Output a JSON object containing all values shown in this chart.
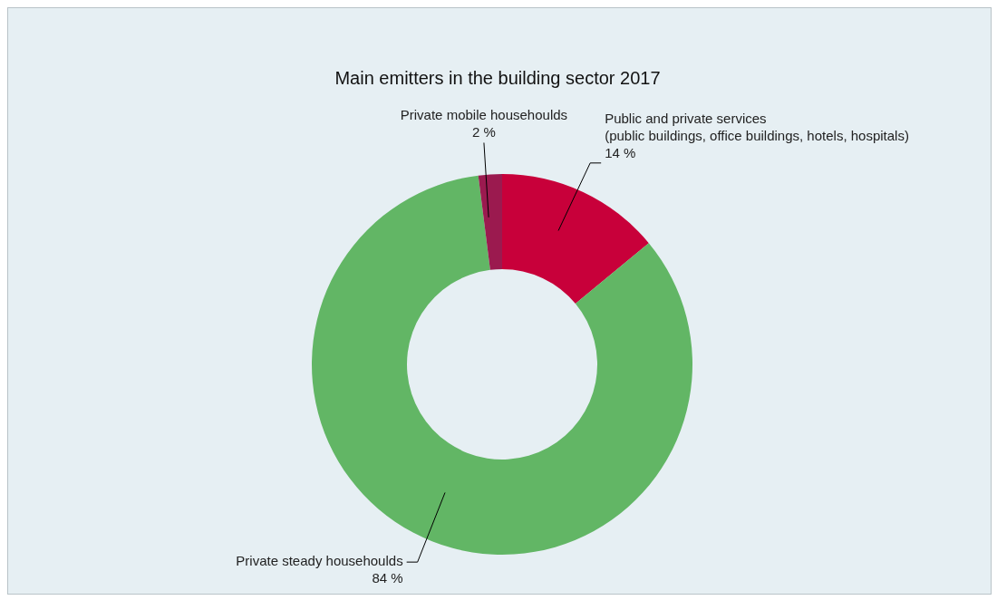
{
  "chart_data": {
    "type": "donut",
    "title": "Main emitters in the building sector 2017",
    "categories": [
      "Public and private services\n(public buildings, office buildings, hotels, hospitals)",
      "Private steady househoulds",
      "Private mobile househoulds"
    ],
    "values": [
      14,
      84,
      2
    ],
    "colors": [
      "#c8003a",
      "#62b665",
      "#9b1a4f"
    ],
    "value_labels": [
      "14 %",
      "84 %",
      "2 %"
    ],
    "legend": false
  }
}
